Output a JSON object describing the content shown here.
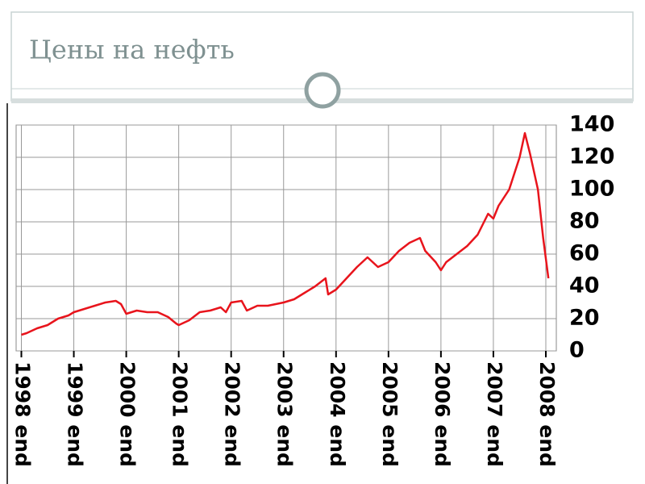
{
  "chart_data": {
    "type": "line",
    "title": "Цены на нефть",
    "x": [
      1998,
      1998.1,
      1998.3,
      1998.5,
      1998.7,
      1998.9,
      1999,
      1999.2,
      1999.4,
      1999.6,
      1999.8,
      1999.9,
      2000,
      2000.2,
      2000.4,
      2000.6,
      2000.8,
      2000.95,
      2001,
      2001.2,
      2001.4,
      2001.6,
      2001.8,
      2001.9,
      2002,
      2002.2,
      2002.3,
      2002.5,
      2002.7,
      2003,
      2003.2,
      2003.4,
      2003.6,
      2003.8,
      2003.85,
      2004,
      2004.2,
      2004.4,
      2004.6,
      2004.8,
      2005,
      2005.2,
      2005.4,
      2005.6,
      2005.7,
      2005.9,
      2006,
      2006.1,
      2006.3,
      2006.5,
      2006.7,
      2006.9,
      2007,
      2007.1,
      2007.3,
      2007.5,
      2007.6,
      2007.7,
      2007.85,
      2007.95,
      2008.05
    ],
    "values": [
      10,
      11,
      14,
      16,
      20,
      22,
      24,
      26,
      28,
      30,
      31,
      29,
      23,
      25,
      24,
      24,
      21,
      17,
      16,
      19,
      24,
      25,
      27,
      24,
      30,
      31,
      25,
      28,
      28,
      30,
      32,
      36,
      40,
      45,
      35,
      38,
      45,
      52,
      58,
      52,
      55,
      62,
      67,
      70,
      62,
      55,
      50,
      55,
      60,
      65,
      72,
      85,
      82,
      90,
      100,
      120,
      135,
      122,
      100,
      70,
      45
    ],
    "color": "#e8141c",
    "xlim": [
      1997.9,
      2008.2
    ],
    "xticks": [
      {
        "value": 1998,
        "label": "1998 end"
      },
      {
        "value": 1999,
        "label": "1999 end"
      },
      {
        "value": 2000,
        "label": "2000 end"
      },
      {
        "value": 2001,
        "label": "2001 end"
      },
      {
        "value": 2002,
        "label": "2002 end"
      },
      {
        "value": 2003,
        "label": "2003 end"
      },
      {
        "value": 2004,
        "label": "2004 end"
      },
      {
        "value": 2005,
        "label": "2005 end"
      },
      {
        "value": 2006,
        "label": "2006 end"
      },
      {
        "value": 2007,
        "label": "2007 end"
      },
      {
        "value": 2008,
        "label": "2008 end"
      }
    ],
    "ylim": [
      0,
      140
    ],
    "yticks": [
      0,
      20,
      40,
      60,
      80,
      100,
      120,
      140
    ],
    "grid": true
  }
}
